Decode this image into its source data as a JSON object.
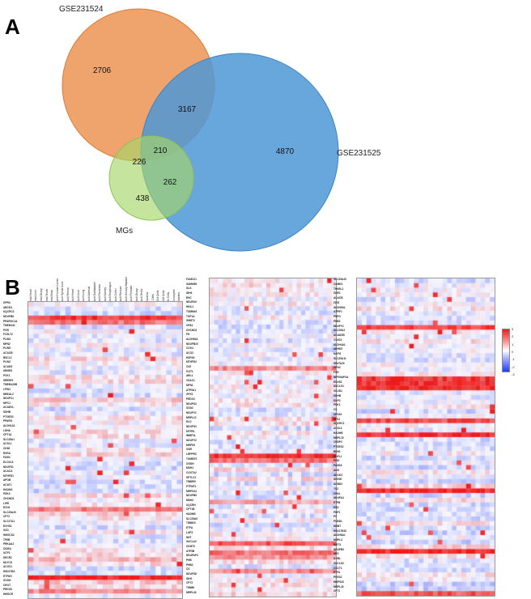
{
  "panels": {
    "a_label": "A",
    "b_label": "B"
  },
  "venn": {
    "sets": [
      {
        "name": "GSE231524",
        "color": "#ec9455"
      },
      {
        "name": "GSE231525",
        "color": "#4d98d5"
      },
      {
        "name": "MGs",
        "color": "#a6d66a"
      }
    ],
    "regions": {
      "only_GSE231524": "2706",
      "GSE231524_GSE231525": "3167",
      "only_GSE231525": "4870",
      "all_three": "210",
      "GSE231524_MGs": "226",
      "GSE231525_MGs": "262",
      "only_MGs": "438"
    }
  },
  "heatmap": {
    "colorscale": {
      "low": "#1f3bff",
      "mid": "#ffffff",
      "high": "#ee1b1b",
      "ticks": [
        "3",
        "2",
        "1",
        "0",
        "-1",
        "-2",
        "-3"
      ]
    },
    "columns": [
      "Fetal Heart",
      "Fetal Liver",
      "Fetal Ovary",
      "Fetal Testis",
      "Fetal Brain",
      "Adult Frontal Cortex",
      "Adult Spinal Cord",
      "Adult Retina",
      "Adult Heart",
      "Adult Liver",
      "Adult Lung",
      "Adult Adrenal",
      "Adult Gallbladder",
      "Adult Pancreas",
      "Adult Kidney",
      "Adult Esophagus",
      "Adult Colon",
      "Adult Rectum",
      "Adult Urinary Bladder",
      "Adult Prostate",
      "Adult Ovary",
      "Adult Testis",
      "Placenta",
      "B Cells",
      "CD4 Cells",
      "CD8 Cells",
      "NK Cells",
      "Monocytes",
      "Platelets"
    ],
    "left_genes": [
      "GPR4",
      "ABCD3",
      "UQCRC2",
      "NDUFB8",
      "PPARGC1A",
      "TMEM141",
      "PGR",
      "FCSLT2",
      "PLIN3",
      "MFN2",
      "PLIN5",
      "ACACB",
      "BSCL2",
      "PLIN2",
      "ACADS",
      "ABHD5",
      "PCK1",
      "SREBF1",
      "TMEM126B",
      "LPIN1",
      "NBEAL2",
      "NDUFC1",
      "MPC1",
      "ACADVL",
      "SDHB",
      "PTGES3",
      "PPARG",
      "ALDH1A1",
      "LDHA",
      "CPT1A",
      "SLC25A1",
      "ACSL1",
      "CD36",
      "RXRA",
      "FASN",
      "ELOVL6",
      "NDUFS1",
      "ACACA",
      "MTHFD1",
      "APOB",
      "ACAT1",
      "HADHA",
      "PDK4",
      "CHCHD3",
      "LIPE",
      "ECH1",
      "SLC25A20",
      "CPT2",
      "SLC27A1",
      "ECHS1",
      "SCD",
      "HMGCS2",
      "TFEB",
      "PRKAA2",
      "CIDEA",
      "UCP2",
      "DECR1",
      "MLYCD",
      "ACOX1",
      "HSD17B4",
      "ETFDH",
      "GCDH",
      "CROT",
      "PRDX6",
      "HMGCR"
    ],
    "mid_genes": [
      "FUNDC1",
      "SAMM50",
      "GLS",
      "IDH3",
      "EHC",
      "NDUFA9",
      "HKIL1",
      "TOMM40",
      "TOP1A",
      "SHMT2",
      "OPA1",
      "CHCHD2",
      "FH",
      "ALDH6A1",
      "NDUFB10",
      "COX4",
      "ACO2",
      "HSPA9",
      "MTHFD2",
      "OAT",
      "GOT1",
      "ABL1",
      "VDAC1",
      "MFN1",
      "ATP5A1",
      "GPX1",
      "PRDX3",
      "NDUFS2",
      "SOD2",
      "NDUFV1",
      "MRPL12",
      "DLD",
      "NDUFS3",
      "MTFR1",
      "IMMP1L",
      "NDUFV2",
      "MRPS9",
      "GSR",
      "LRPPRC",
      "TOMM70",
      "OGDH",
      "MDH1",
      "COX7A2",
      "SPTLC2",
      "TIMM50",
      "PTPMT1",
      "MRPS34",
      "NDUFB5",
      "MDH2",
      "UQCRH",
      "CPT1B",
      "HADHB",
      "SLC25A5",
      "TIMM23",
      "ETFA",
      "LAP3",
      "NNT",
      "SUCLA2",
      "CKMT2",
      "ATP5B",
      "NDUFAF4",
      "PHB",
      "PHB2",
      "CS",
      "NDUFS8",
      "IDH2",
      "CPT2",
      "TIMM8",
      "MRPL40"
    ],
    "right_genes": [
      "SLC25A40",
      "CAMK2",
      "THNSL1",
      "GDE1",
      "ACACB",
      "CKB",
      "ALDH5A1",
      "ATPIF1",
      "PNPO",
      "PHB2",
      "NDUFV1",
      "SLC25A3",
      "ACADSB",
      "COX10",
      "ALDH4A1",
      "ABHD5",
      "NAPG",
      "SLC25A11",
      "SPATA20",
      "GPD2",
      "FXN",
      "NIPSNAP3A",
      "ECHS1",
      "SUCLG1",
      "GLUD1",
      "SDHB",
      "DAP3",
      "PDK1",
      "CS",
      "UPS45",
      "NFS1",
      "UQCRC1",
      "ACSL3",
      "HADHB",
      "MRPL15",
      "CNDP2",
      "PTGES2",
      "BDH1",
      "SGPL1",
      "PISD",
      "PAM16",
      "AUH",
      "ADCK3",
      "DHX30",
      "ACBD3",
      "TK2",
      "OPA1",
      "NDUFA4",
      "ETFB",
      "ESD",
      "PDP2",
      "PC",
      "PCBD1",
      "NNMT",
      "HSD17B10",
      "ALDH6A1",
      "MRPL4",
      "SIRT3",
      "NDUFB3",
      "ME2",
      "ILVBL",
      "SUCLG2",
      "OXCT1",
      "ETFA",
      "PDSS2",
      "MRPS33",
      "MRPL40",
      "CPT1"
    ]
  }
}
